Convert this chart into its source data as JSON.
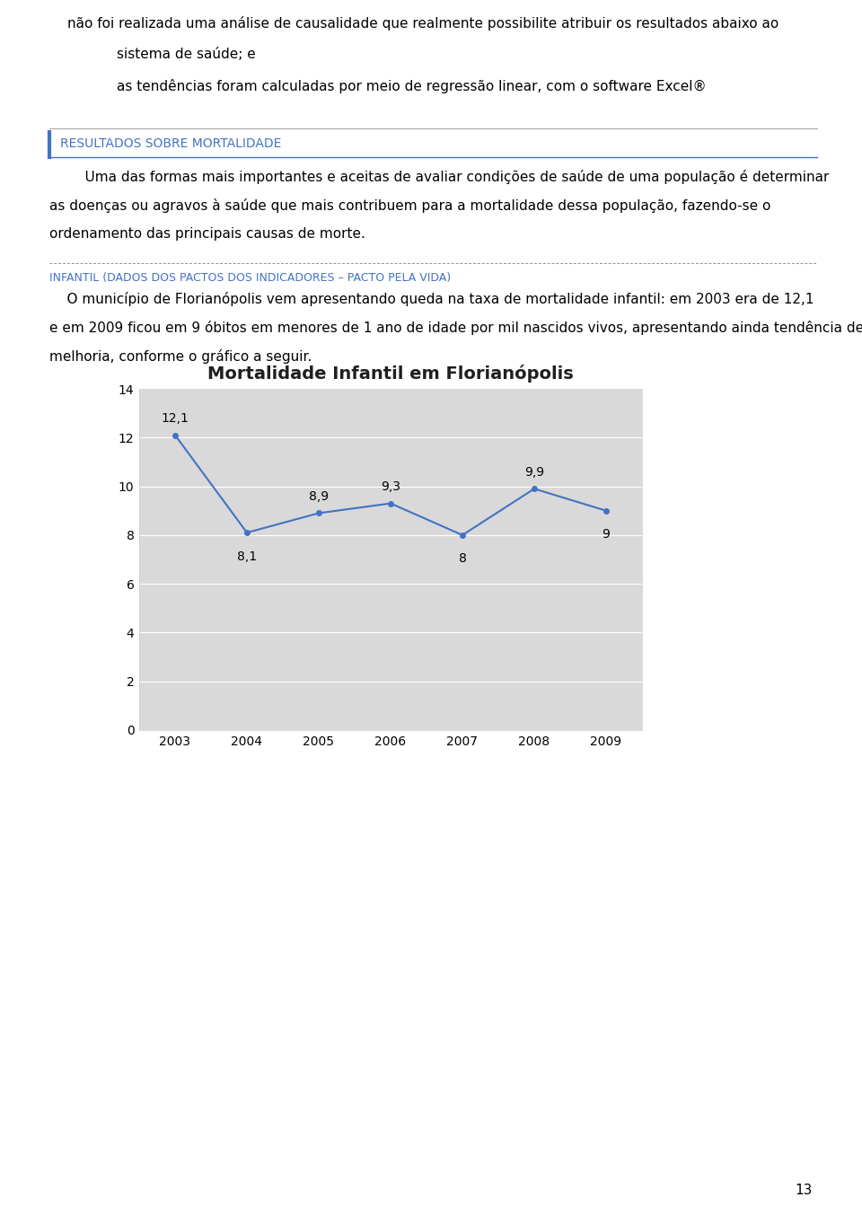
{
  "page_text_top": [
    "não foi realizada uma análise de causalidade que realmente possibilite atribuir os resultados abaixo ao",
    "sistema de saúde; e",
    "as tendências foram calculadas por meio de regressão linear, com o software Excel®"
  ],
  "section_title": "RESULTADOS SOBRE MORTALIDADE",
  "section_body_line1": "    Uma das formas mais importantes e aceitas de avaliar condições de saúde de uma população é determinar",
  "section_body_line2": "as doenças ou agravos à saúde que mais contribuem para a mortalidade dessa população, fazendo-se o",
  "section_body_line3": "ordenamento das principais causas de morte.",
  "infantil_title_line": "INFANTIL (DADOS DOS PACTOS DOS INDICADORES – PACTO PELA VIDA)",
  "infantil_body": [
    "    O município de Florianópolis vem apresentando queda na taxa de mortalidade infantil: em 2003 era de 12,1",
    "e em 2009 ficou em 9 óbitos em menores de 1 ano de idade por mil nascidos vivos, apresentando ainda tendência de",
    "melhoria, conforme o gráfico a seguir."
  ],
  "chart_title": "Mortalidade Infantil em Florianópolis",
  "years": [
    2003,
    2004,
    2005,
    2006,
    2007,
    2008,
    2009
  ],
  "values": [
    12.1,
    8.1,
    8.9,
    9.3,
    8.0,
    9.9,
    9.0
  ],
  "labels": [
    "12,1",
    "8,1",
    "8,9",
    "9,3",
    "8",
    "9,9",
    "9"
  ],
  "ylim": [
    0,
    14
  ],
  "yticks": [
    0,
    2,
    4,
    6,
    8,
    10,
    12,
    14
  ],
  "line_color": "#4472C4",
  "chart_bg": "#D9D9D9",
  "page_bg": "#FFFFFF",
  "section_title_color": "#4472C4",
  "section_box_border": "#4472C4",
  "page_number": "13",
  "text_color": "#000000",
  "font_size_body": 11.0,
  "font_size_section_title": 10.0,
  "font_size_infantil": 9.0
}
